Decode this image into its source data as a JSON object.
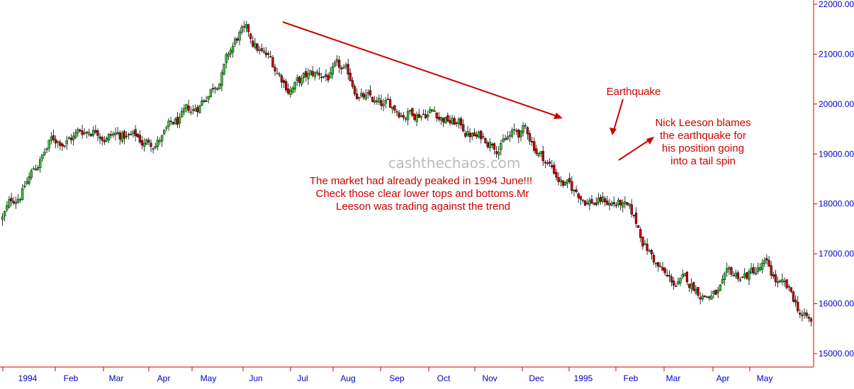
{
  "chart_data": {
    "type": "candlestick",
    "title": "",
    "xlabel": "",
    "ylabel": "",
    "ylim": [
      14800,
      22100
    ],
    "y_ticks": [
      "22000.00",
      "21000.00",
      "20000.00",
      "19000.00",
      "18000.00",
      "17000.00",
      "16000.00",
      "15000.00"
    ],
    "x_ticks": [
      "1994",
      "Feb",
      "Mar",
      "Apr",
      "May",
      "Jun",
      "Jul",
      "Aug",
      "Sep",
      "Oct",
      "Nov",
      "Dec",
      "1995",
      "Feb",
      "Mar",
      "Apr",
      "May"
    ],
    "up_color": "#33cc33",
    "down_color": "#cc0000",
    "approx_closes": [
      {
        "date": "1994-01",
        "close": 17700
      },
      {
        "date": "1994-02",
        "close": 19200
      },
      {
        "date": "1994-03",
        "close": 19600
      },
      {
        "date": "1994-04",
        "close": 19200
      },
      {
        "date": "1994-05",
        "close": 19700
      },
      {
        "date": "1994-06",
        "close": 21400
      },
      {
        "date": "1994-07",
        "close": 20400
      },
      {
        "date": "1994-08",
        "close": 20600
      },
      {
        "date": "1994-09",
        "close": 19800
      },
      {
        "date": "1994-10",
        "close": 20000
      },
      {
        "date": "1994-11",
        "close": 19300
      },
      {
        "date": "1994-12",
        "close": 19400
      },
      {
        "date": "1995-01",
        "close": 18200
      },
      {
        "date": "1995-02",
        "close": 18000
      },
      {
        "date": "1995-03",
        "close": 16400
      },
      {
        "date": "1995-04",
        "close": 16200
      },
      {
        "date": "1995-05",
        "close": 16700
      },
      {
        "date": "1995-06",
        "close": 15500
      }
    ],
    "annotations": {
      "watermark": "cashthechaos.com",
      "trend_note": [
        "The market had already peaked in 1994 June!!!",
        "Check those clear lower tops and bottoms.Mr",
        "Leeson was trading against the trend"
      ],
      "earthquake": "Earthquake",
      "leeson_note": [
        "Nick Leeson blames",
        "the earthquake for",
        "his position going",
        "into a tail spin"
      ]
    }
  },
  "colors": {
    "axis": "#cc0000",
    "tick_text": "#0000cc",
    "annotation": "#cc0000",
    "watermark": "#bbbbbb"
  }
}
